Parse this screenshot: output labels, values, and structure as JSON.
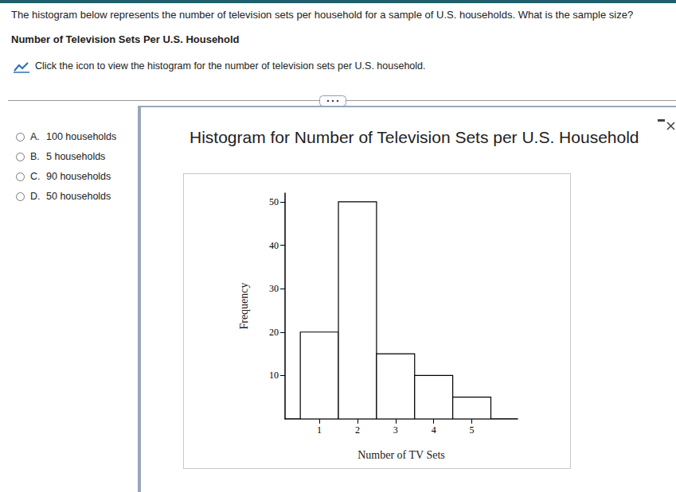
{
  "question": "The histogram below represents the number of television sets per household for a sample of U.S. households. What is the sample size?",
  "heading": "Number of Television Sets Per U.S. Household",
  "link_text": "Click the icon to view the histogram for the number of television sets per U.S. household.",
  "options": [
    {
      "letter": "A.",
      "text": "100 households"
    },
    {
      "letter": "B.",
      "text": "5 households"
    },
    {
      "letter": "C.",
      "text": "90 households"
    },
    {
      "letter": "D.",
      "text": "50 households"
    }
  ],
  "chart_data": {
    "type": "histogram",
    "title": "Histogram for Number of Television Sets per U.S. Household",
    "x_label": "Number of TV Sets",
    "y_label": "Frequency",
    "bins": [
      0.5,
      1.5,
      2.5,
      3.5,
      4.5,
      5.5
    ],
    "counts": [
      20,
      50,
      15,
      10,
      5
    ],
    "color": "#ffffff",
    "xlim": [
      0.1,
      6.2
    ],
    "xticks": [
      1,
      2,
      3,
      4,
      5
    ],
    "ylim": [
      0,
      52
    ],
    "yticks": [
      10,
      20,
      30,
      40,
      50
    ],
    "grid": false
  }
}
